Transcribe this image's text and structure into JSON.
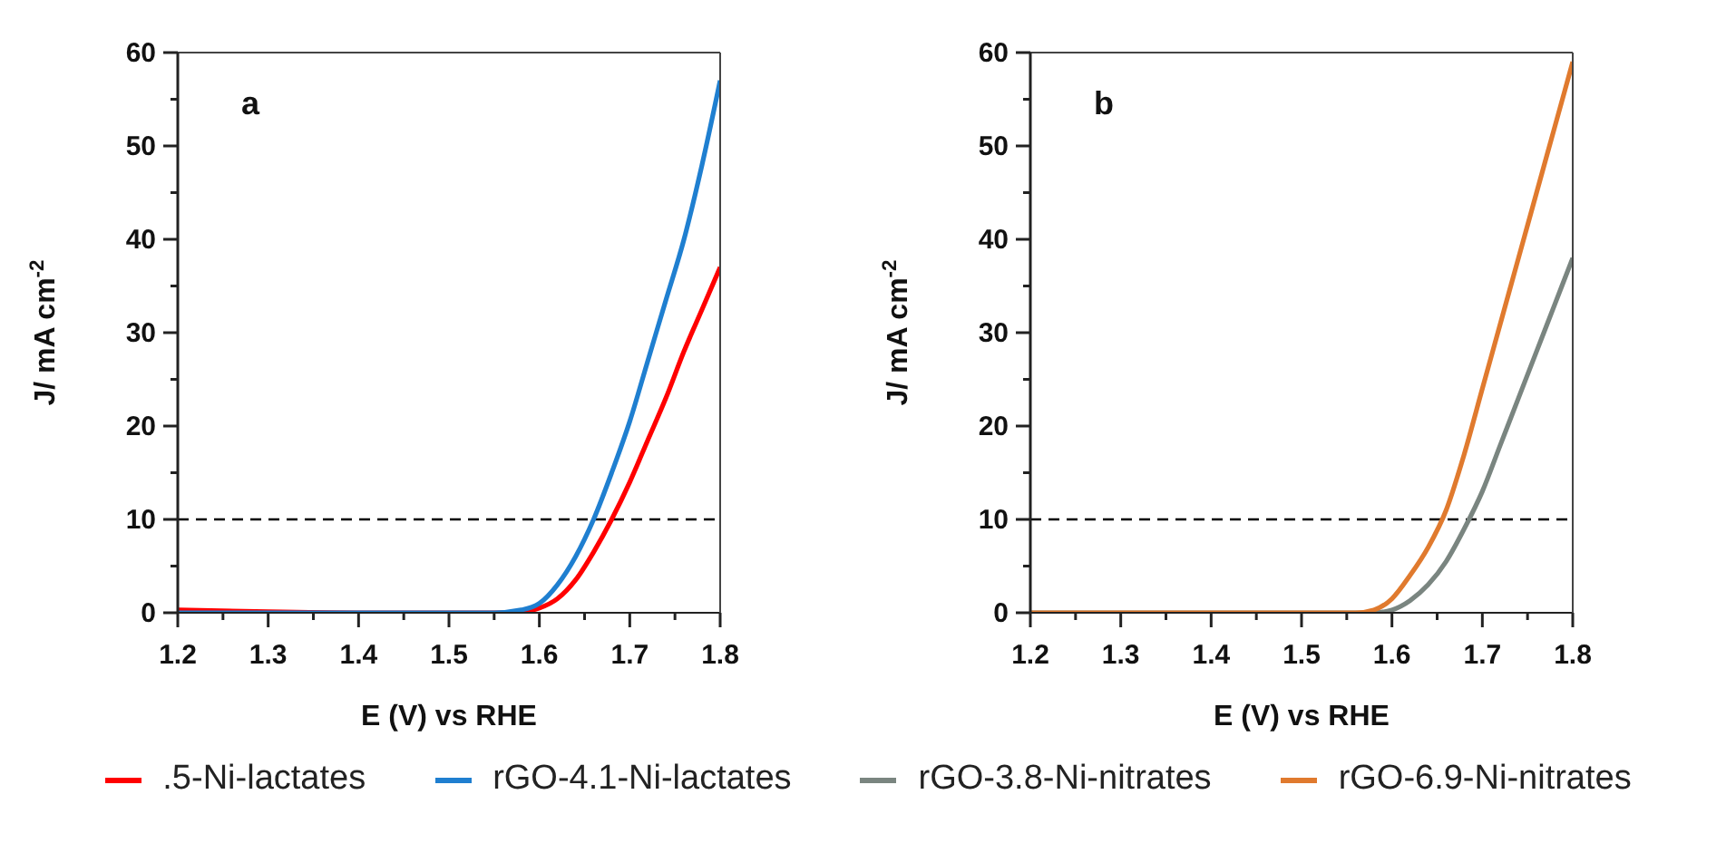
{
  "chart_data": [
    {
      "type": "line",
      "annotations": [
        "a"
      ],
      "xlabel": "E (V) vs RHE",
      "ylabel": "J/ mA cm$^{-2}$",
      "xlim": [
        1.2,
        1.8
      ],
      "ylim": [
        0,
        60
      ],
      "xticks": [
        1.2,
        {
          "value": 1.25,
          "label": null
        },
        1.3,
        {
          "value": 1.35,
          "label": null
        },
        1.4,
        {
          "value": 1.45,
          "label": null
        },
        1.5,
        {
          "value": 1.55,
          "label": null
        },
        1.6,
        {
          "value": 1.65,
          "label": null
        },
        1.7,
        {
          "value": 1.75,
          "label": null
        },
        1.8
      ],
      "yticks": [
        0,
        {
          "value": 5,
          "label": null
        },
        10,
        {
          "value": 15,
          "label": null
        },
        20,
        {
          "value": 25,
          "label": null
        },
        30,
        {
          "value": 35,
          "label": null
        },
        40,
        {
          "value": 45,
          "label": null
        },
        50,
        {
          "value": 55,
          "label": null
        },
        60
      ],
      "grid": false,
      "legend": "bottom",
      "marker": "none",
      "line_style": "solid",
      "ref_lines": [
        {
          "axis": "y",
          "value": 10,
          "color": "#000000",
          "line_style": "dashed"
        }
      ],
      "series": [
        {
          "name": ".5-Ni-lactates",
          "color": "#ff0000",
          "x": [
            1.2,
            1.3,
            1.4,
            1.5,
            1.55,
            1.58,
            1.6,
            1.62,
            1.64,
            1.66,
            1.68,
            1.7,
            1.72,
            1.74,
            1.76,
            1.78,
            1.8
          ],
          "values": [
            0.3,
            0.1,
            0,
            0,
            0,
            0.1,
            0.5,
            1.5,
            3.5,
            6.5,
            10,
            14,
            18.5,
            23,
            28,
            32.5,
            37
          ]
        },
        {
          "name": "rGO-4.1-Ni-lactates",
          "color": "#1f7fd0",
          "x": [
            1.2,
            1.3,
            1.4,
            1.5,
            1.55,
            1.58,
            1.6,
            1.62,
            1.64,
            1.66,
            1.68,
            1.7,
            1.72,
            1.74,
            1.76,
            1.78,
            1.8
          ],
          "values": [
            0,
            0,
            0,
            0,
            0,
            0.3,
            1,
            3,
            6,
            10,
            15,
            20.5,
            27,
            33.5,
            40,
            48,
            57
          ]
        }
      ]
    },
    {
      "type": "line",
      "annotations": [
        "b"
      ],
      "xlabel": "E (V) vs RHE",
      "ylabel": "J/ mA cm$^{-2}$",
      "xlim": [
        1.2,
        1.8
      ],
      "ylim": [
        0,
        60
      ],
      "xticks": [
        1.2,
        {
          "value": 1.25,
          "label": null
        },
        1.3,
        {
          "value": 1.35,
          "label": null
        },
        1.4,
        {
          "value": 1.45,
          "label": null
        },
        1.5,
        {
          "value": 1.55,
          "label": null
        },
        1.6,
        {
          "value": 1.65,
          "label": null
        },
        1.7,
        {
          "value": 1.75,
          "label": null
        },
        1.8
      ],
      "yticks": [
        0,
        {
          "value": 5,
          "label": null
        },
        10,
        {
          "value": 15,
          "label": null
        },
        20,
        {
          "value": 25,
          "label": null
        },
        30,
        {
          "value": 35,
          "label": null
        },
        40,
        {
          "value": 45,
          "label": null
        },
        50,
        {
          "value": 55,
          "label": null
        },
        60
      ],
      "grid": false,
      "legend": "bottom",
      "marker": "none",
      "line_style": "solid",
      "ref_lines": [
        {
          "axis": "y",
          "value": 10,
          "color": "#000000",
          "line_style": "dashed"
        }
      ],
      "series": [
        {
          "name": "rGO-3.8-Ni-nitrates",
          "color": "#7a8580",
          "x": [
            1.2,
            1.3,
            1.4,
            1.5,
            1.58,
            1.6,
            1.62,
            1.64,
            1.66,
            1.68,
            1.7,
            1.72,
            1.74,
            1.76,
            1.78,
            1.8
          ],
          "values": [
            0,
            0,
            0,
            0,
            0,
            0.3,
            1.3,
            3,
            5.5,
            9,
            13,
            18,
            23,
            28,
            33,
            38
          ]
        },
        {
          "name": "rGO-6.9-Ni-nitrates",
          "color": "#e07a2e",
          "x": [
            1.2,
            1.3,
            1.4,
            1.5,
            1.56,
            1.58,
            1.6,
            1.62,
            1.64,
            1.66,
            1.68,
            1.7,
            1.72,
            1.74,
            1.76,
            1.78,
            1.8
          ],
          "values": [
            0,
            0,
            0,
            0,
            0,
            0.3,
            1.5,
            4,
            7,
            11,
            17,
            24,
            31,
            38,
            45,
            52,
            59
          ]
        }
      ]
    }
  ]
}
